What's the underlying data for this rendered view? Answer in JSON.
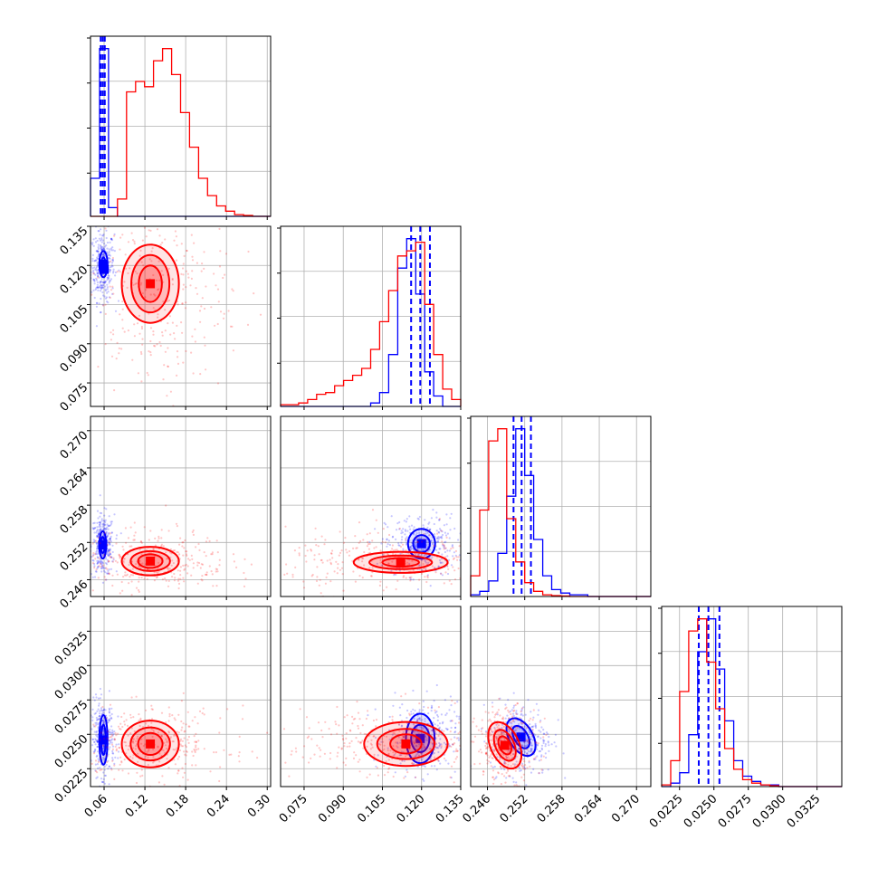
{
  "colors": {
    "blue": "#0000ff",
    "red": "#ff0000",
    "grid": "#b0b0b0"
  },
  "chart_data": {
    "type": "corner",
    "parameters": [
      {
        "range": [
          0.04,
          0.305
        ],
        "ticks": [
          0.06,
          0.12,
          0.18,
          0.24,
          0.3
        ],
        "tick_labels": [
          "0.06",
          "0.12",
          "0.18",
          "0.24",
          "0.30"
        ]
      },
      {
        "range": [
          0.066,
          0.135
        ],
        "ticks": [
          0.075,
          0.09,
          0.105,
          0.12,
          0.135
        ],
        "tick_labels": [
          "0.075",
          "0.090",
          "0.105",
          "0.120",
          "0.135"
        ]
      },
      {
        "range": [
          0.2433,
          0.2723
        ],
        "ticks": [
          0.246,
          0.252,
          0.258,
          0.264,
          0.27
        ],
        "tick_labels": [
          "0.246",
          "0.252",
          "0.258",
          "0.264",
          "0.270"
        ]
      },
      {
        "range": [
          0.0212,
          0.0343
        ],
        "ticks": [
          0.0225,
          0.025,
          0.0275,
          0.03,
          0.0325
        ],
        "tick_labels": [
          "0.0225",
          "0.0250",
          "0.0275",
          "0.0300",
          "0.0325"
        ]
      }
    ],
    "series": [
      {
        "color": "blue",
        "mean": [
          0.058,
          0.12,
          0.2515,
          0.0247
        ],
        "sigma": [
          0.0045,
          0.0036,
          0.0013,
          0.0007
        ],
        "quantiles": [
          [
            0.055,
            0.058,
            0.061
          ],
          [
            0.116,
            0.1195,
            0.1232
          ],
          [
            0.2502,
            0.2515,
            0.253
          ],
          [
            0.0239,
            0.0246,
            0.0254
          ]
        ],
        "histograms": [
          [
            22,
            97,
            5,
            0,
            0,
            0,
            0,
            0,
            0,
            0,
            0,
            0,
            0,
            0,
            0,
            0,
            0,
            0,
            0,
            0
          ],
          [
            0,
            0,
            0,
            0,
            0,
            0,
            0,
            0,
            0,
            0,
            2,
            8,
            30,
            80,
            97,
            65,
            20,
            6,
            0,
            0
          ],
          [
            1,
            3,
            9,
            25,
            58,
            97,
            70,
            33,
            12,
            4,
            2,
            1,
            1,
            0,
            0,
            0,
            0,
            0,
            0,
            0
          ],
          [
            0,
            2,
            8,
            30,
            78,
            97,
            68,
            38,
            15,
            6,
            3,
            1,
            1,
            0,
            0,
            0,
            0,
            0,
            0,
            0
          ]
        ],
        "panels": {
          "1-0": {
            "contours": [
              [
                0.006,
                0.005,
                0
              ],
              [
                0.003,
                0.0026,
                0
              ]
            ],
            "core": [
              [
                0.059,
                0.1205
              ],
              [
                0.06,
                0.1185
              ]
            ]
          },
          "2-0": {
            "contours": [
              [
                0.005,
                0.0022,
                0
              ],
              [
                0.003,
                0.0013,
                0
              ]
            ],
            "core": [
              [
                0.058,
                0.2516
              ]
            ]
          },
          "2-1": {
            "contours": [
              [
                0.0052,
                0.0024,
                0
              ],
              [
                0.0032,
                0.0014,
                0
              ]
            ],
            "core": [
              [
                0.12,
                0.2518
              ]
            ]
          },
          "3-0": {
            "contours": [
              [
                0.006,
                0.0018,
                0
              ],
              [
                0.0033,
                0.0011,
                0
              ]
            ],
            "core": [
              [
                0.059,
                0.0246
              ]
            ]
          },
          "3-1": {
            "contours": [
              [
                0.0055,
                0.0018,
                0
              ],
              [
                0.0035,
                0.001,
                0
              ]
            ],
            "core": [
              [
                0.1195,
                0.0247
              ]
            ]
          },
          "3-2": {
            "contours": [
              [
                0.0019,
                0.0015,
                30
              ],
              [
                0.0011,
                0.0009,
                30
              ]
            ],
            "core": [
              [
                0.2514,
                0.0248
              ]
            ]
          }
        }
      },
      {
        "color": "red",
        "mean": [
          0.13,
          0.11,
          0.2491,
          0.0243
        ],
        "sigma": [
          0.03,
          0.011,
          0.0013,
          0.0007
        ],
        "quantiles": [],
        "histograms": [
          [
            0,
            0,
            0,
            10,
            72,
            78,
            75,
            90,
            97,
            82,
            60,
            40,
            22,
            12,
            6,
            3,
            1,
            0.5,
            0,
            0
          ],
          [
            1,
            1,
            2,
            4,
            7,
            8,
            12,
            15,
            18,
            22,
            33,
            49,
            67,
            87,
            90,
            95,
            59,
            30,
            10,
            4
          ],
          [
            12,
            50,
            90,
            97,
            45,
            20,
            8,
            3,
            1,
            0.5,
            0.3,
            0,
            0,
            0,
            0,
            0,
            0,
            0,
            0,
            0
          ],
          [
            1,
            15,
            55,
            90,
            97,
            72,
            45,
            22,
            10,
            4,
            2,
            1,
            0.5,
            0,
            0,
            0,
            0,
            0,
            0,
            0
          ]
        ],
        "panels": {
          "1-0": {
            "contours": [
              [
                0.042,
                0.015,
                0
              ],
              [
                0.028,
                0.011,
                0
              ],
              [
                0.017,
                0.007,
                0
              ]
            ],
            "core": [
              [
                0.128,
                0.113
              ]
            ]
          },
          "2-0": {
            "contours": [
              [
                0.042,
                0.0023,
                0
              ],
              [
                0.029,
                0.0016,
                0
              ],
              [
                0.018,
                0.0011,
                0
              ]
            ],
            "core": [
              [
                0.128,
                0.249
              ]
            ]
          },
          "2-1": {
            "contours": [
              [
                0.018,
                0.0017,
                0
              ],
              [
                0.012,
                0.0011,
                0
              ],
              [
                0.007,
                0.0007,
                0
              ]
            ],
            "core": [
              [
                0.112,
                0.2488
              ]
            ]
          },
          "3-0": {
            "contours": [
              [
                0.042,
                0.0017,
                0
              ],
              [
                0.029,
                0.0012,
                0
              ],
              [
                0.018,
                0.0008,
                0
              ]
            ],
            "core": [
              [
                0.128,
                0.0243
              ]
            ]
          },
          "3-1": {
            "contours": [
              [
                0.016,
                0.0016,
                0
              ],
              [
                0.011,
                0.0011,
                0
              ],
              [
                0.006,
                0.0007,
                0
              ]
            ],
            "core": [
              [
                0.114,
                0.0243
              ]
            ]
          },
          "3-2": {
            "contours": [
              [
                0.0023,
                0.0018,
                25
              ],
              [
                0.0015,
                0.0012,
                25
              ],
              [
                0.0009,
                0.0007,
                25
              ]
            ],
            "core": [
              [
                0.2488,
                0.0242
              ]
            ]
          }
        }
      }
    ]
  }
}
